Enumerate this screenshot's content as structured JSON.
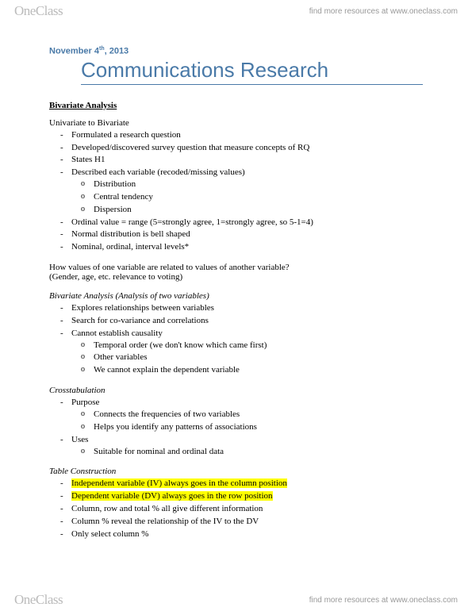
{
  "brand": {
    "logo_light": "One",
    "logo_bold": "Class",
    "tagline": "find more resources at www.oneclass.com"
  },
  "doc": {
    "date_prefix": "November 4",
    "date_suffix": "th",
    "date_year": ", 2013",
    "title": "Communications Research",
    "section1": "Bivariate Analysis",
    "u2b_heading": "Univariate to Bivariate",
    "u2b": {
      "i1": "Formulated a research question",
      "i2": "Developed/discovered survey question that measure concepts of RQ",
      "i3": "States H1",
      "i4": "Described each variable (recoded/missing values)",
      "i4a": "Distribution",
      "i4b": "Central tendency",
      "i4c": "Dispersion",
      "i5": "Ordinal value = range  (5=strongly agree, 1=strongly agree, so 5-1=4)",
      "i6": "Normal distribution is bell shaped",
      "i7": "Nominal, ordinal, interval levels*"
    },
    "q1": "How values of one variable are related to values of another variable?",
    "q2": "(Gender, age, etc. relevance to voting)",
    "biv_head": "Bivariate Analysis (Analysis of two variables)",
    "biv": {
      "i1": "Explores relationships between variables",
      "i2": "Search for co-variance and correlations",
      "i3": "Cannot establish causality",
      "i3a": "Temporal order (we don't know which came first)",
      "i3b": "Other variables",
      "i3c": "We cannot explain the dependent variable"
    },
    "ct_head": "Crosstabulation",
    "ct": {
      "i1": "Purpose",
      "i1a": "Connects the frequencies of two variables",
      "i1b": "Helps you identify any patterns of associations",
      "i2": "Uses",
      "i2a": "Suitable for nominal and ordinal data"
    },
    "tc_head": "Table Construction",
    "tc": {
      "i1": "Independent variable (IV) always goes in the column position",
      "i2": "Dependent variable (DV) always goes in the row position",
      "i3": "Column, row and total % all give different information",
      "i4": "Column % reveal the relationship of the IV to the DV",
      "i5": "Only select column %"
    }
  },
  "style": {
    "accent": "#4a7aa8",
    "highlight": "#ffff00",
    "body_font_size": 11,
    "title_font_size": 26
  }
}
